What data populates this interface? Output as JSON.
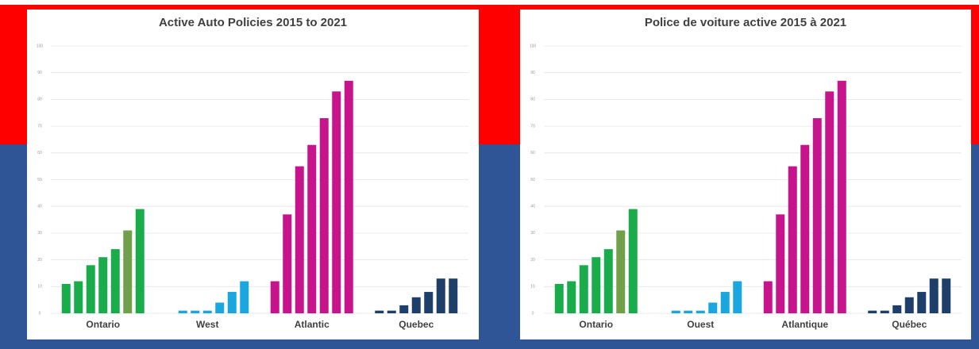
{
  "chart_data": [
    {
      "type": "grouped-bar",
      "title": "Active Auto Policies 2015 to 2021",
      "categories": [
        "Ontario",
        "West",
        "Atlantic",
        "Quebec"
      ],
      "values": [
        [
          11,
          12,
          18,
          21,
          24,
          31,
          39
        ],
        [
          0,
          1,
          1,
          1,
          4,
          8,
          12
        ],
        [
          12,
          37,
          55,
          63,
          73,
          83,
          87
        ],
        [
          1,
          1,
          3,
          6,
          8,
          13,
          13
        ]
      ],
      "colors": [
        [
          "#1aab4b",
          "#1aab4b",
          "#1aab4b",
          "#1aab4b",
          "#1aab4b",
          "#70a14a",
          "#1aab4b"
        ],
        [
          "#1aa7e0",
          "#1aa7e0",
          "#1aa7e0",
          "#1aa7e0",
          "#1aa7e0",
          "#1aa7e0",
          "#1aa7e0"
        ],
        [
          "#c8148c",
          "#c8148c",
          "#c8148c",
          "#c8148c",
          "#c8148c",
          "#c8148c",
          "#c8148c"
        ],
        [
          "#1f3f6b",
          "#1f3f6b",
          "#1f3f6b",
          "#1f3f6b",
          "#1f3f6b",
          "#1f3f6b",
          "#1f3f6b"
        ]
      ],
      "ylim": [
        0,
        100
      ],
      "yticks": [
        0,
        10,
        20,
        30,
        40,
        50,
        60,
        70,
        80,
        90,
        100
      ],
      "grid": true
    },
    {
      "type": "grouped-bar",
      "title": "Police de voiture active 2015 à 2021",
      "categories": [
        "Ontario",
        "Ouest",
        "Atlantique",
        "Québec"
      ],
      "values": [
        [
          11,
          12,
          18,
          21,
          24,
          31,
          39
        ],
        [
          0,
          1,
          1,
          1,
          4,
          8,
          12
        ],
        [
          12,
          37,
          55,
          63,
          73,
          83,
          87
        ],
        [
          1,
          1,
          3,
          6,
          8,
          13,
          13
        ]
      ],
      "colors": [
        [
          "#1aab4b",
          "#1aab4b",
          "#1aab4b",
          "#1aab4b",
          "#1aab4b",
          "#70a14a",
          "#1aab4b"
        ],
        [
          "#1aa7e0",
          "#1aa7e0",
          "#1aa7e0",
          "#1aa7e0",
          "#1aa7e0",
          "#1aa7e0",
          "#1aa7e0"
        ],
        [
          "#c8148c",
          "#c8148c",
          "#c8148c",
          "#c8148c",
          "#c8148c",
          "#c8148c",
          "#c8148c"
        ],
        [
          "#1f3f6b",
          "#1f3f6b",
          "#1f3f6b",
          "#1f3f6b",
          "#1f3f6b",
          "#1f3f6b",
          "#1f3f6b"
        ]
      ],
      "ylim": [
        0,
        100
      ],
      "yticks": [
        0,
        10,
        20,
        30,
        40,
        50,
        60,
        70,
        80,
        90,
        100
      ],
      "grid": true
    }
  ]
}
